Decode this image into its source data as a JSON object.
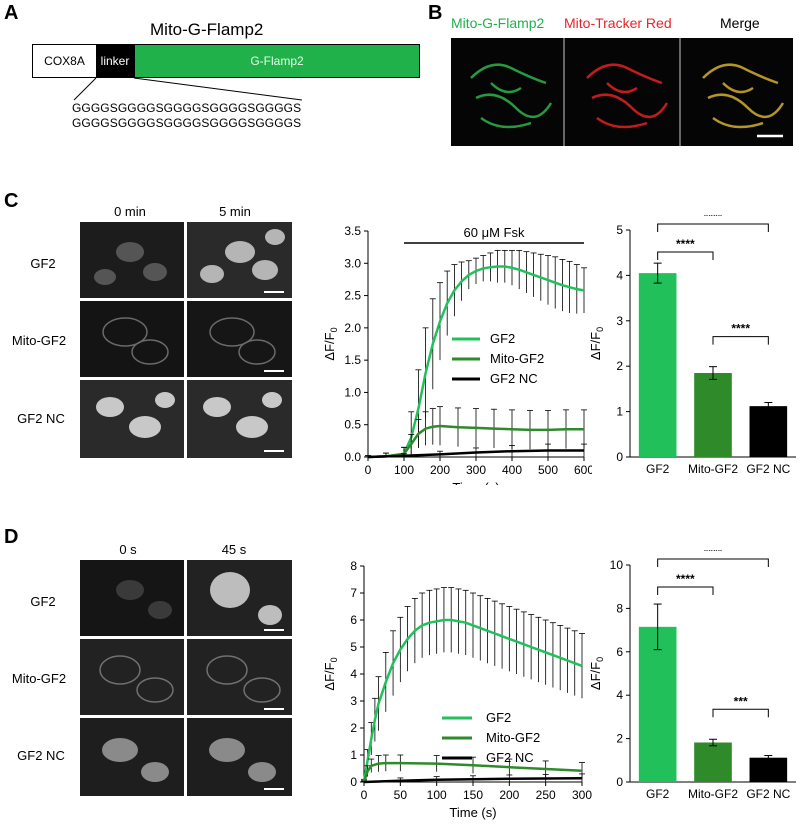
{
  "panels": {
    "A": {
      "label": "A",
      "title": "Mito-G-Flamp2",
      "segments": [
        "COX8A",
        "linker",
        "G-Flamp2"
      ],
      "linker_seq_1": "GGGGSGGGGSGGGGSGGGGSGGGGS",
      "linker_seq_2": "GGGGSGGGGSGGGGSGGGGSGGGGS",
      "colors": {
        "green": "#21b14b",
        "black": "#000000"
      }
    },
    "B": {
      "label": "B",
      "channels": [
        "Mito-G-Flamp2",
        "Mito-Tracker Red",
        "Merge"
      ],
      "colors": [
        "#1fb24a",
        "#e8232a",
        "#000000"
      ]
    },
    "C": {
      "label": "C",
      "col_labels": [
        "0 min",
        "5 min"
      ],
      "row_labels": [
        "GF2",
        "Mito-GF2",
        "GF2 NC"
      ],
      "treatment": "60 μM Fsk"
    },
    "D": {
      "label": "D",
      "col_labels": [
        "0 s",
        "45 s"
      ],
      "row_labels": [
        "GF2",
        "Mito-GF2",
        "GF2 NC"
      ]
    }
  },
  "chart_data": [
    {
      "id": "C-line",
      "type": "line",
      "xlabel": "Time (s)",
      "ylabel": "ΔF/F₀",
      "xlim": [
        0,
        600
      ],
      "ylim": [
        0,
        3.5
      ],
      "xticks": [
        0,
        100,
        200,
        300,
        400,
        500,
        600
      ],
      "yticks": [
        0.0,
        0.5,
        1.0,
        1.5,
        2.0,
        2.5,
        3.0,
        3.5
      ],
      "ytick_labels": [
        "0.0",
        "0.5",
        "1.0",
        "1.5",
        "2.0",
        "2.5",
        "3.0",
        "3.5"
      ],
      "annotation": "60 μM Fsk",
      "legend": "center-right",
      "series": [
        {
          "name": "GF2",
          "color": "#21c05a",
          "x": [
            0,
            50,
            100,
            120,
            140,
            160,
            180,
            200,
            220,
            240,
            260,
            280,
            300,
            320,
            340,
            360,
            380,
            400,
            420,
            440,
            460,
            480,
            500,
            520,
            540,
            560,
            580,
            600
          ],
          "y": [
            0.0,
            0.01,
            0.05,
            0.3,
            0.75,
            1.3,
            1.75,
            2.1,
            2.38,
            2.58,
            2.72,
            2.82,
            2.88,
            2.92,
            2.94,
            2.95,
            2.95,
            2.93,
            2.9,
            2.86,
            2.82,
            2.78,
            2.74,
            2.7,
            2.66,
            2.63,
            2.6,
            2.58
          ],
          "err": [
            0.02,
            0.05,
            0.1,
            0.4,
            0.6,
            0.7,
            0.7,
            0.6,
            0.5,
            0.4,
            0.3,
            0.22,
            0.2,
            0.2,
            0.22,
            0.25,
            0.25,
            0.27,
            0.3,
            0.32,
            0.34,
            0.36,
            0.38,
            0.4,
            0.4,
            0.4,
            0.38,
            0.35
          ]
        },
        {
          "name": "Mito-GF2",
          "color": "#2f8a2a",
          "x": [
            0,
            50,
            100,
            120,
            140,
            160,
            180,
            200,
            250,
            300,
            350,
            400,
            450,
            500,
            550,
            600
          ],
          "y": [
            0.0,
            0.01,
            0.05,
            0.2,
            0.36,
            0.44,
            0.47,
            0.48,
            0.46,
            0.45,
            0.44,
            0.43,
            0.42,
            0.42,
            0.43,
            0.43
          ],
          "err": [
            0.02,
            0.05,
            0.1,
            0.15,
            0.22,
            0.26,
            0.28,
            0.3,
            0.3,
            0.3,
            0.3,
            0.3,
            0.3,
            0.3,
            0.3,
            0.3
          ]
        },
        {
          "name": "GF2 NC",
          "color": "#000000",
          "x": [
            0,
            100,
            200,
            300,
            400,
            500,
            600
          ],
          "y": [
            0.0,
            0.02,
            0.04,
            0.07,
            0.09,
            0.1,
            0.1
          ],
          "err": [
            0.02,
            0.03,
            0.05,
            0.07,
            0.09,
            0.1,
            0.1
          ]
        }
      ]
    },
    {
      "id": "C-bar",
      "type": "bar",
      "ylabel": "ΔF/F₀",
      "ylim": [
        0,
        5
      ],
      "yticks": [
        0,
        1,
        2,
        3,
        4,
        5
      ],
      "categories": [
        "GF2",
        "Mito-GF2",
        "GF2 NC"
      ],
      "values": [
        4.05,
        1.85,
        1.12
      ],
      "errors": [
        0.22,
        0.14,
        0.08
      ],
      "colors": [
        "#21c05a",
        "#2f8a2a",
        "#000000"
      ],
      "significance": [
        {
          "pair": [
            0,
            1
          ],
          "label": "****"
        },
        {
          "pair": [
            0,
            2
          ],
          "label": "****"
        },
        {
          "pair": [
            1,
            2
          ],
          "label": "****"
        }
      ]
    },
    {
      "id": "D-line",
      "type": "line",
      "xlabel": "Time (s)",
      "ylabel": "ΔF/F₀",
      "xlim": [
        0,
        300
      ],
      "ylim": [
        0,
        8
      ],
      "xticks": [
        0,
        50,
        100,
        150,
        200,
        250,
        300
      ],
      "yticks": [
        0,
        1,
        2,
        3,
        4,
        5,
        6,
        7,
        8
      ],
      "legend": "bottom-right",
      "series": [
        {
          "name": "GF2",
          "color": "#21c05a",
          "x": [
            0,
            5,
            10,
            15,
            20,
            30,
            40,
            50,
            60,
            70,
            80,
            90,
            100,
            110,
            120,
            130,
            140,
            150,
            160,
            170,
            180,
            190,
            200,
            210,
            220,
            230,
            240,
            250,
            260,
            270,
            280,
            290,
            300
          ],
          "y": [
            0.0,
            0.8,
            1.6,
            2.3,
            2.9,
            3.7,
            4.4,
            4.9,
            5.3,
            5.6,
            5.8,
            5.9,
            5.95,
            6.0,
            6.0,
            5.95,
            5.9,
            5.8,
            5.7,
            5.6,
            5.5,
            5.4,
            5.3,
            5.2,
            5.1,
            5.0,
            4.9,
            4.8,
            4.7,
            4.6,
            4.5,
            4.4,
            4.3
          ],
          "err": [
            0.1,
            0.4,
            0.6,
            0.8,
            1.0,
            1.1,
            1.2,
            1.2,
            1.2,
            1.2,
            1.2,
            1.2,
            1.2,
            1.2,
            1.2,
            1.2,
            1.2,
            1.2,
            1.2,
            1.2,
            1.2,
            1.2,
            1.2,
            1.2,
            1.2,
            1.2,
            1.2,
            1.2,
            1.2,
            1.2,
            1.2,
            1.2,
            1.2
          ]
        },
        {
          "name": "Mito-GF2",
          "color": "#2f8a2a",
          "x": [
            0,
            5,
            10,
            20,
            30,
            50,
            100,
            150,
            200,
            250,
            300
          ],
          "y": [
            0.0,
            0.4,
            0.6,
            0.68,
            0.7,
            0.7,
            0.68,
            0.62,
            0.55,
            0.48,
            0.42
          ],
          "err": [
            0.05,
            0.2,
            0.25,
            0.3,
            0.3,
            0.3,
            0.3,
            0.3,
            0.3,
            0.3,
            0.3
          ]
        },
        {
          "name": "GF2 NC",
          "color": "#000000",
          "x": [
            0,
            50,
            100,
            150,
            200,
            250,
            300
          ],
          "y": [
            0.0,
            0.05,
            0.08,
            0.1,
            0.12,
            0.13,
            0.14
          ],
          "err": [
            0.02,
            0.1,
            0.12,
            0.13,
            0.14,
            0.15,
            0.16
          ]
        }
      ]
    },
    {
      "id": "D-bar",
      "type": "bar",
      "ylabel": "ΔF/F₀",
      "ylim": [
        0,
        10
      ],
      "yticks": [
        0,
        2,
        4,
        6,
        8,
        10
      ],
      "categories": [
        "GF2",
        "Mito-GF2",
        "GF2 NC"
      ],
      "values": [
        7.15,
        1.82,
        1.12
      ],
      "errors": [
        1.05,
        0.15,
        0.1
      ],
      "colors": [
        "#21c05a",
        "#2f8a2a",
        "#000000"
      ],
      "significance": [
        {
          "pair": [
            0,
            1
          ],
          "label": "****"
        },
        {
          "pair": [
            0,
            2
          ],
          "label": "****"
        },
        {
          "pair": [
            1,
            2
          ],
          "label": "***"
        }
      ]
    }
  ]
}
